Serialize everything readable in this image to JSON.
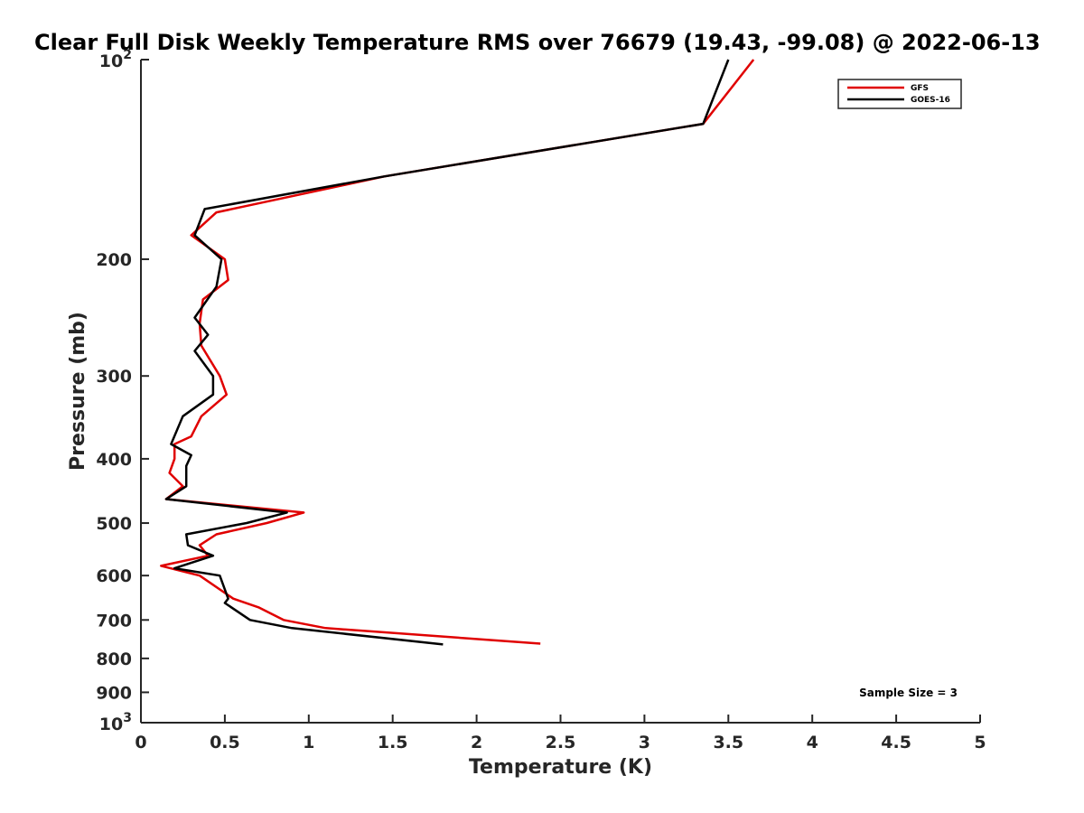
{
  "chart_data": {
    "type": "line",
    "title": "Clear Full Disk Weekly Temperature RMS over 76679 (19.43, -99.08) @ 2022-06-13",
    "xlabel": "Temperature (K)",
    "ylabel": "Pressure (mb)",
    "xlim": [
      0,
      5
    ],
    "ylim": [
      100,
      1000
    ],
    "y_scale": "log",
    "y_reversed": true,
    "x_ticks": [
      0,
      0.5,
      1,
      1.5,
      2,
      2.5,
      3,
      3.5,
      4,
      4.5,
      5
    ],
    "x_tick_labels": [
      "0",
      "0.5",
      "1",
      "1.5",
      "2",
      "2.5",
      "3",
      "3.5",
      "4",
      "4.5",
      "5"
    ],
    "y_ticks": [
      200,
      300,
      400,
      500,
      600,
      700,
      800,
      900
    ],
    "y_tick_labels": [
      "200",
      "300",
      "400",
      "500",
      "600",
      "700",
      "800",
      "900"
    ],
    "y_decade_ticks": [
      {
        "value": 100,
        "base": "10",
        "exp": "2"
      },
      {
        "value": 1000,
        "base": "10",
        "exp": "3"
      }
    ],
    "grid": false,
    "legend_position": "top-right",
    "series": [
      {
        "name": "GFS",
        "color": "#e00000",
        "points": [
          [
            3.65,
            100
          ],
          [
            3.35,
            125
          ],
          [
            1.45,
            150
          ],
          [
            0.45,
            170
          ],
          [
            0.3,
            184
          ],
          [
            0.5,
            200
          ],
          [
            0.52,
            215
          ],
          [
            0.37,
            230
          ],
          [
            0.35,
            250
          ],
          [
            0.36,
            270
          ],
          [
            0.47,
            300
          ],
          [
            0.51,
            320
          ],
          [
            0.36,
            345
          ],
          [
            0.3,
            370
          ],
          [
            0.2,
            380
          ],
          [
            0.2,
            400
          ],
          [
            0.17,
            420
          ],
          [
            0.25,
            440
          ],
          [
            0.15,
            460
          ],
          [
            0.97,
            482
          ],
          [
            0.75,
            500
          ],
          [
            0.45,
            520
          ],
          [
            0.35,
            540
          ],
          [
            0.4,
            560
          ],
          [
            0.12,
            580
          ],
          [
            0.35,
            600
          ],
          [
            0.55,
            650
          ],
          [
            0.7,
            670
          ],
          [
            0.85,
            700
          ],
          [
            1.1,
            720
          ],
          [
            2.38,
            760
          ]
        ]
      },
      {
        "name": "GOES-16",
        "color": "#000000",
        "points": [
          [
            3.5,
            100
          ],
          [
            3.35,
            125
          ],
          [
            1.45,
            150
          ],
          [
            0.38,
            168
          ],
          [
            0.32,
            184
          ],
          [
            0.48,
            200
          ],
          [
            0.45,
            220
          ],
          [
            0.32,
            245
          ],
          [
            0.4,
            260
          ],
          [
            0.32,
            275
          ],
          [
            0.43,
            300
          ],
          [
            0.43,
            320
          ],
          [
            0.25,
            345
          ],
          [
            0.18,
            380
          ],
          [
            0.3,
            395
          ],
          [
            0.27,
            410
          ],
          [
            0.27,
            440
          ],
          [
            0.15,
            460
          ],
          [
            0.87,
            482
          ],
          [
            0.63,
            500
          ],
          [
            0.27,
            520
          ],
          [
            0.28,
            540
          ],
          [
            0.43,
            560
          ],
          [
            0.2,
            585
          ],
          [
            0.47,
            600
          ],
          [
            0.52,
            650
          ],
          [
            0.5,
            660
          ],
          [
            0.65,
            700
          ],
          [
            0.9,
            720
          ],
          [
            1.8,
            762
          ]
        ]
      }
    ],
    "annotations": [
      {
        "text": "Sample Size = 3"
      }
    ]
  }
}
